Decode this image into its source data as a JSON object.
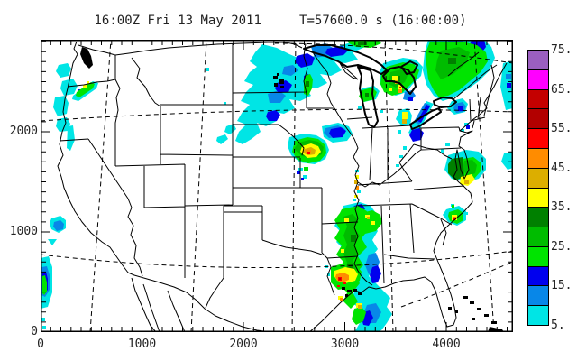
{
  "title": "16:00Z Fri 13 May 2011     T=57600.0 s (16:00:00)",
  "axes": {
    "x": {
      "tick_labels": [
        "0",
        "1000",
        "2000",
        "3000",
        "4000"
      ],
      "tick_values": [
        0,
        1000,
        2000,
        3000,
        4000
      ],
      "minor_step": 100,
      "max": 4600
    },
    "y": {
      "tick_labels": [
        "0",
        "1000",
        "2000"
      ],
      "tick_values": [
        0,
        1000,
        2000
      ],
      "minor_step": 100,
      "max": 2900
    }
  },
  "colorbar": {
    "tick_labels": [
      "75.",
      "65.",
      "55.",
      "45.",
      "35.",
      "25.",
      "15.",
      "5."
    ],
    "cell_colors_top_to_bottom": [
      "#9B5FC0",
      "#FF00FF",
      "#C40000",
      "#B20000",
      "#FF0000",
      "#FF8C00",
      "#DCAE00",
      "#FFFF00",
      "#008000",
      "#00BC00",
      "#00E400",
      "#0000EE",
      "#0887E8",
      "#00E5E5"
    ]
  },
  "colors": {
    "background": "#FFFFFF",
    "map_lines": "#000000",
    "text": "#222222"
  }
}
